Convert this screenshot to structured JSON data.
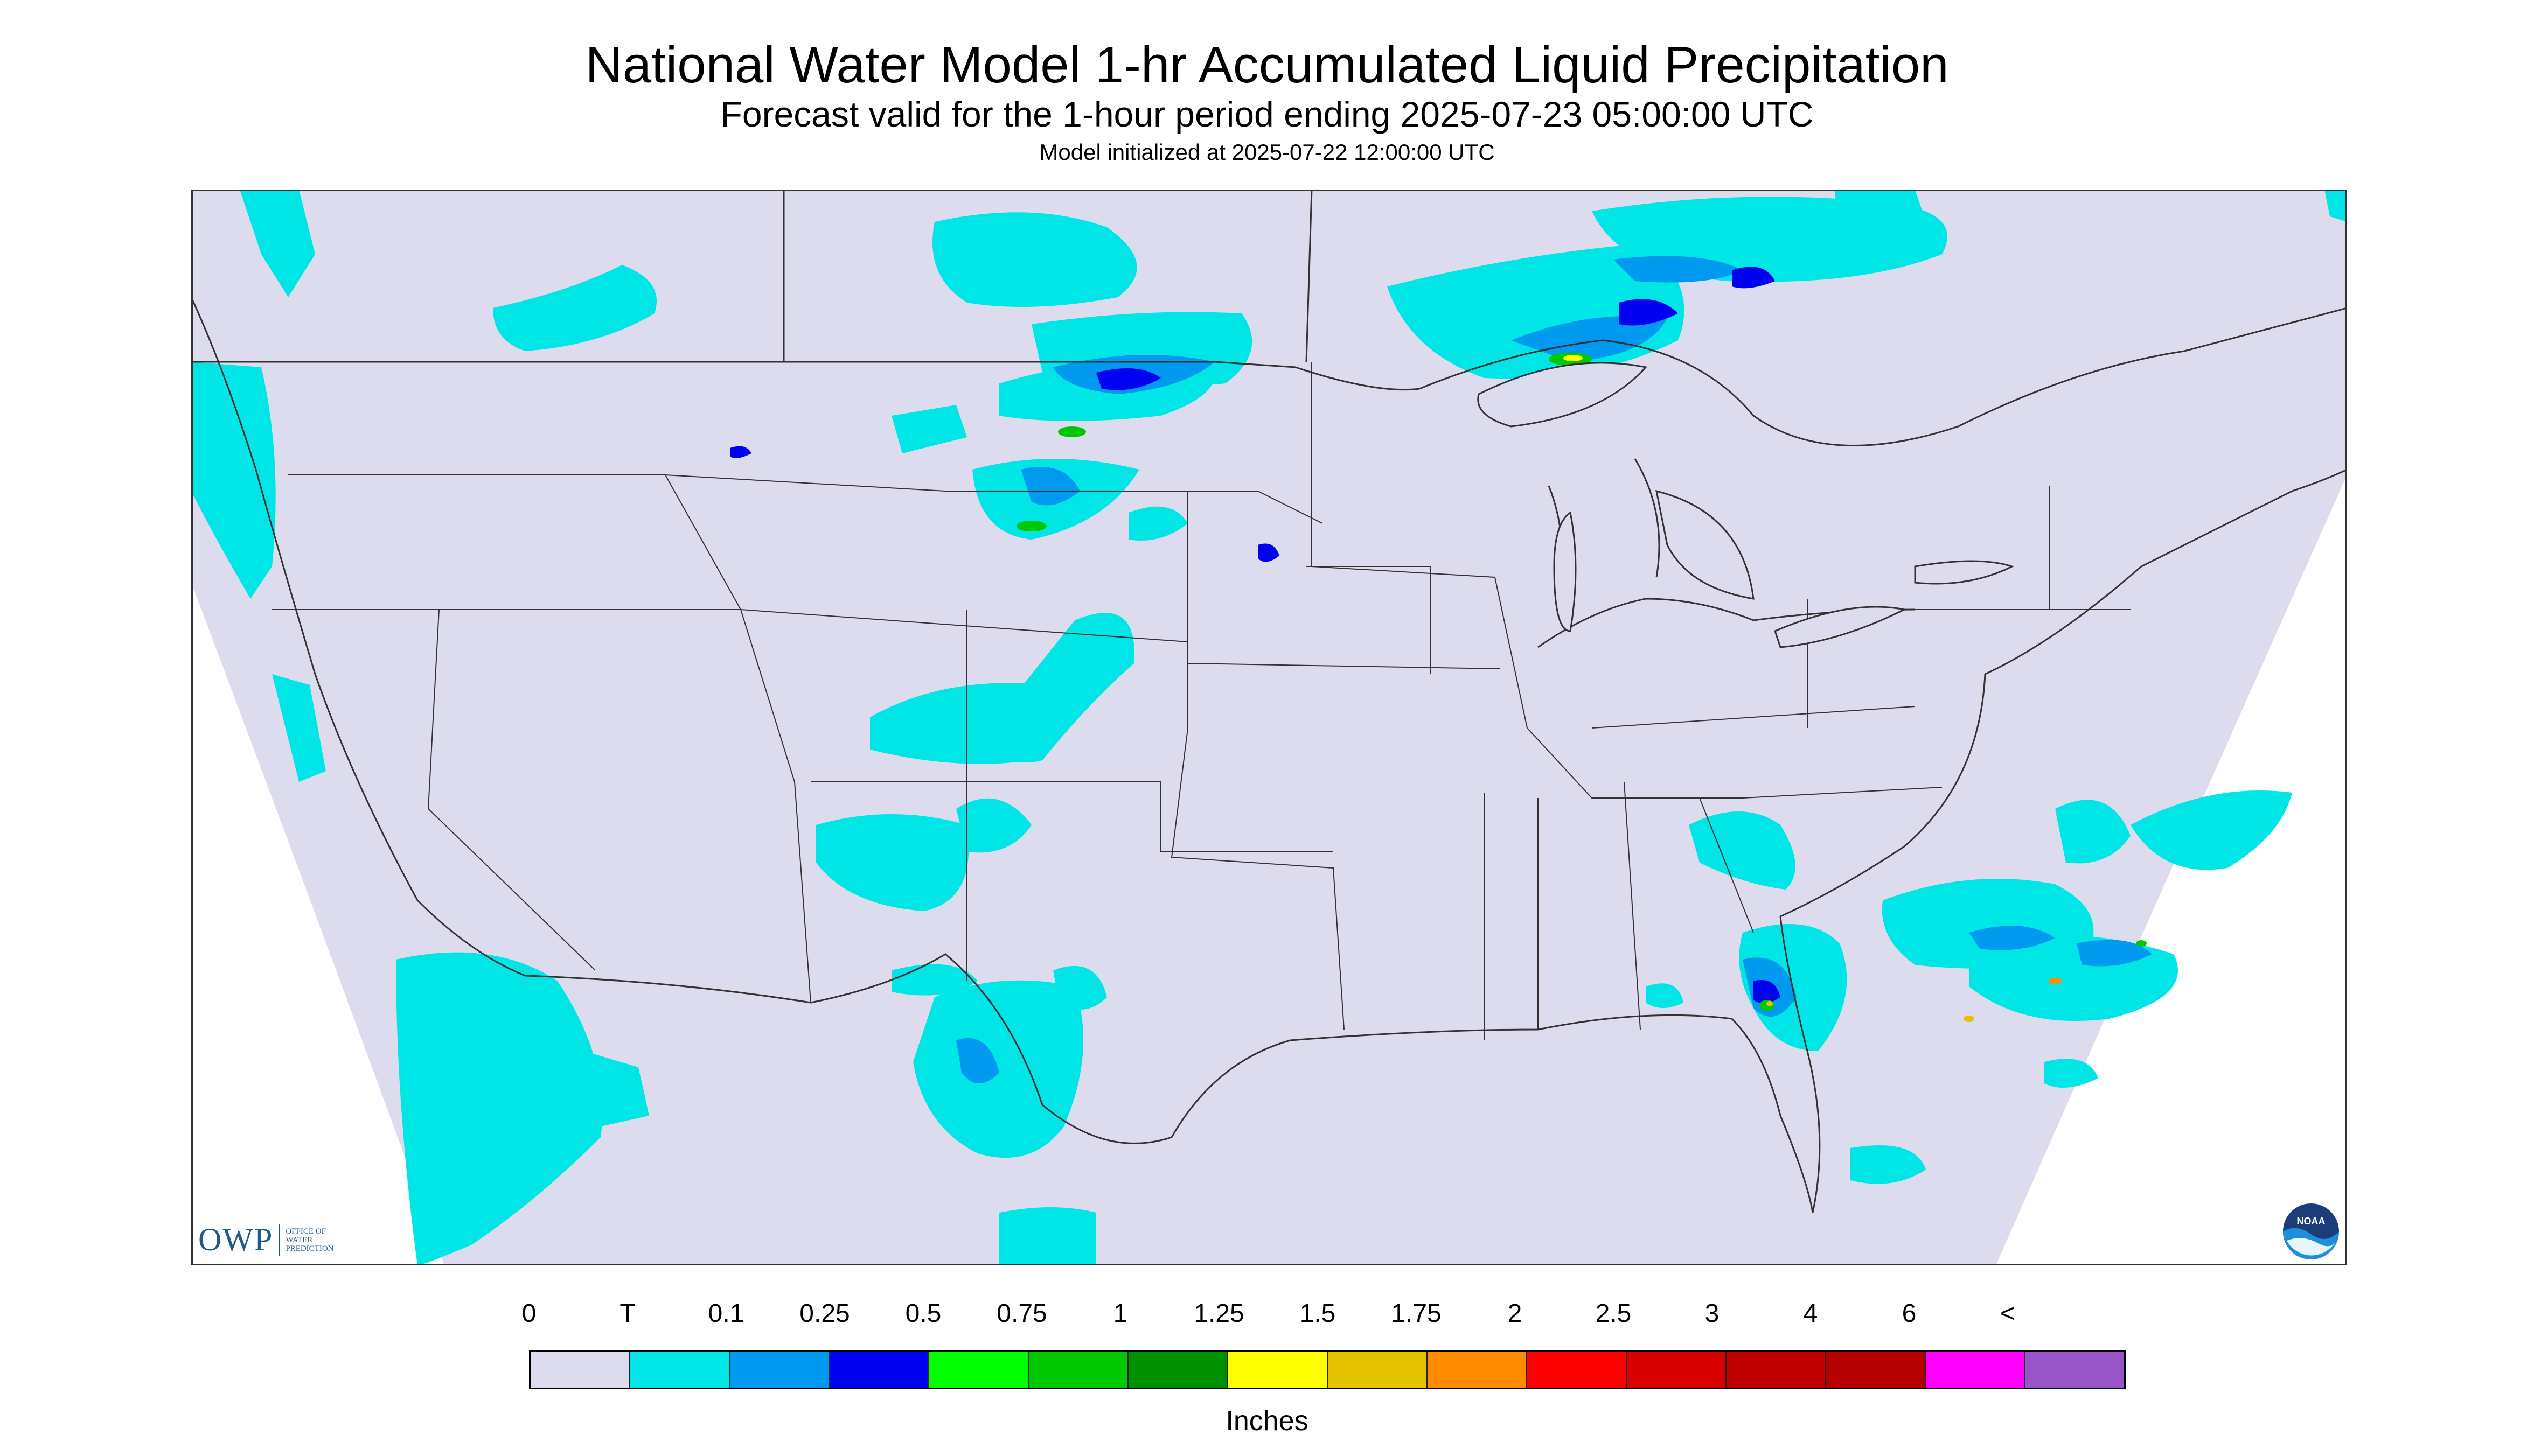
{
  "header": {
    "title": "National Water Model 1-hr Accumulated Liquid Precipitation",
    "subtitle": "Forecast valid for the 1-hour period ending 2025-07-23 05:00:00 UTC",
    "init": "Model initialized at 2025-07-22 12:00:00 UTC"
  },
  "map": {
    "background_color": "#dcdcee",
    "outside_domain_color": "#ffffff",
    "border_color": "#333333"
  },
  "legend": {
    "labels": [
      "0",
      "T",
      "0.1",
      "0.25",
      "0.5",
      "0.75",
      "1",
      "1.25",
      "1.5",
      "1.75",
      "2",
      "2.5",
      "3",
      "4",
      "6",
      "<"
    ],
    "colors": [
      "#dcdcee",
      "#00e6e6",
      "#0099f0",
      "#0000f0",
      "#00ff00",
      "#00c800",
      "#009000",
      "#ffff00",
      "#e6c300",
      "#ff8c00",
      "#ff0000",
      "#d80000",
      "#c00000",
      "#b40000",
      "#ff00ff",
      "#9855c8"
    ],
    "units": "Inches"
  },
  "logos": {
    "owp_mark": "OWP",
    "owp_text": "OFFICE OF\nWATER\nPREDICTION",
    "noaa_text": "NOAA"
  }
}
